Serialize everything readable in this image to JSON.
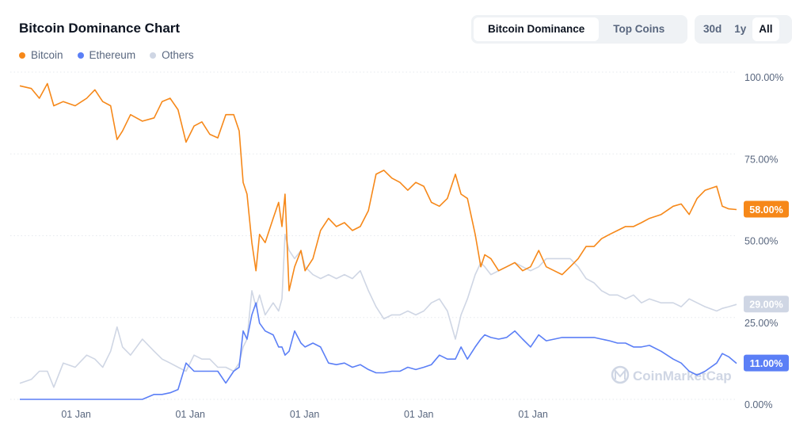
{
  "title": "Bitcoin Dominance Chart",
  "tabs": [
    {
      "label": "Bitcoin Dominance",
      "active": true
    },
    {
      "label": "Top Coins",
      "active": false
    }
  ],
  "ranges": [
    {
      "label": "30d",
      "active": false
    },
    {
      "label": "1y",
      "active": false
    },
    {
      "label": "All",
      "active": true
    }
  ],
  "watermark": "CoinMarketCap",
  "chart_data": {
    "type": "line",
    "title": "",
    "xlabel": "",
    "ylabel": "",
    "ylim": [
      0,
      100
    ],
    "grid": true,
    "legend_placement": "top-left",
    "y_ticks": [
      "0.00%",
      "25.00%",
      "50.00%",
      "75.00%",
      "100.00%"
    ],
    "y_tick_values": [
      0,
      25,
      50,
      75,
      100
    ],
    "x_ticks": [
      {
        "label": "01 Jan",
        "date": "2014-01-01"
      },
      {
        "label": "01 Jan",
        "date": "2016-01-01"
      },
      {
        "label": "01 Jan",
        "date": "2018-01-01"
      },
      {
        "label": "01 Jan",
        "date": "2020-01-01"
      },
      {
        "label": "01 Jan",
        "date": "2022-01-01"
      }
    ],
    "x": [
      "2013-01-06",
      "2013-03-21",
      "2013-05-11",
      "2013-07-01",
      "2013-08-11",
      "2013-10-11",
      "2013-12-26",
      "2014-03-10",
      "2014-05-01",
      "2014-06-20",
      "2014-08-10",
      "2014-09-20",
      "2014-10-25",
      "2014-12-15",
      "2015-03-01",
      "2015-05-15",
      "2015-07-05",
      "2015-08-25",
      "2015-10-15",
      "2015-12-05",
      "2016-01-25",
      "2016-03-15",
      "2016-05-05",
      "2016-06-25",
      "2016-08-15",
      "2016-10-05",
      "2016-11-09",
      "2016-12-04",
      "2016-12-29",
      "2017-01-29",
      "2017-02-24",
      "2017-03-19",
      "2017-04-24",
      "2017-06-14",
      "2017-07-19",
      "2017-08-09",
      "2017-08-29",
      "2017-09-24",
      "2017-10-29",
      "2017-12-09",
      "2018-01-04",
      "2018-02-23",
      "2018-04-13",
      "2018-06-03",
      "2018-07-23",
      "2018-09-13",
      "2018-11-03",
      "2018-12-23",
      "2019-02-13",
      "2019-04-03",
      "2019-05-23",
      "2019-07-13",
      "2019-09-03",
      "2019-10-23",
      "2019-12-13",
      "2020-02-02",
      "2020-03-22",
      "2020-05-12",
      "2020-07-02",
      "2020-08-22",
      "2020-09-27",
      "2020-11-07",
      "2020-12-27",
      "2021-02-01",
      "2021-02-26",
      "2021-04-06",
      "2021-05-26",
      "2021-07-16",
      "2021-09-06",
      "2021-10-26",
      "2021-12-16",
      "2022-02-06",
      "2022-03-26",
      "2022-05-16",
      "2022-07-06",
      "2022-08-26",
      "2022-10-16",
      "2022-12-06",
      "2023-01-26",
      "2023-03-15",
      "2023-05-05",
      "2023-06-25",
      "2023-08-15",
      "2023-10-05",
      "2023-11-25",
      "2024-01-15",
      "2024-03-30",
      "2024-06-15",
      "2024-08-05",
      "2024-09-25",
      "2024-11-15",
      "2025-01-05",
      "2025-03-20",
      "2025-04-25",
      "2025-06-05",
      "2025-07-25"
    ],
    "series": [
      {
        "name": "Bitcoin",
        "color": "#f68819",
        "current_label": "58.00%",
        "values": [
          95.8,
          95,
          92,
          96.5,
          89.7,
          91,
          89.7,
          92,
          94.6,
          91,
          89.7,
          79.4,
          82,
          87,
          85,
          86,
          91,
          92,
          88.5,
          78.6,
          83.5,
          84.8,
          81,
          79.9,
          87,
          87,
          82,
          66.3,
          62.7,
          47.9,
          39.3,
          50.4,
          47.9,
          55.3,
          60.2,
          52.8,
          62.7,
          33.2,
          40.5,
          45.5,
          39.3,
          43,
          51.6,
          55.3,
          52.8,
          54,
          51.6,
          52.8,
          57.7,
          68.8,
          70,
          67.6,
          66.3,
          63.9,
          66.3,
          65.1,
          60.2,
          59,
          61.4,
          68.8,
          62.7,
          61.4,
          50.4,
          40.5,
          44.2,
          43,
          39.3,
          40.5,
          41.8,
          39.3,
          40.5,
          45.5,
          40.5,
          39.3,
          38.1,
          40.5,
          43,
          46.7,
          46.7,
          49.1,
          50.4,
          51.6,
          52.8,
          52.8,
          54,
          55.3,
          56.5,
          59,
          59.7,
          56.5,
          61.4,
          63.9,
          65.1,
          59,
          58.2,
          58.0
        ]
      },
      {
        "name": "Ethereum",
        "color": "#5b7ff6",
        "current_label": "11.00%",
        "values": [
          0,
          0,
          0,
          0,
          0,
          0,
          0,
          0,
          0,
          0,
          0,
          0,
          0,
          0,
          0,
          1.5,
          1.5,
          2.0,
          3.0,
          11.1,
          8.6,
          8.6,
          8.6,
          8.6,
          5.0,
          8.6,
          9.8,
          20.9,
          18.4,
          25.8,
          29.5,
          23.3,
          20.9,
          19.7,
          16.0,
          16.0,
          13.5,
          14.7,
          20.9,
          17.2,
          16.0,
          17.2,
          16.0,
          11.1,
          10.6,
          11.1,
          9.8,
          10.6,
          9.1,
          8.1,
          8.1,
          8.6,
          8.6,
          9.8,
          9.1,
          9.8,
          10.6,
          13.5,
          12.3,
          12.3,
          16.0,
          12.3,
          16.0,
          18.4,
          19.7,
          18.9,
          18.4,
          18.9,
          20.9,
          18.4,
          16.0,
          19.7,
          17.9,
          18.4,
          18.9,
          18.9,
          18.9,
          18.9,
          18.9,
          18.4,
          17.9,
          17.2,
          17.2,
          16.0,
          16.0,
          16.5,
          14.7,
          12.3,
          11.1,
          8.6,
          7.4,
          8.6,
          11.1,
          14.0,
          13.0,
          11.0
        ]
      },
      {
        "name": "Others",
        "color": "#cfd6e4",
        "current_label": "29.00%",
        "values": [
          4.9,
          6.1,
          8.6,
          8.6,
          3.7,
          11.1,
          9.8,
          13.5,
          12.3,
          9.8,
          14.7,
          22.1,
          16.0,
          13.5,
          18.4,
          14.7,
          12.3,
          11.1,
          9.8,
          8.6,
          13.5,
          12.3,
          12.3,
          9.8,
          9.8,
          8.6,
          11.1,
          16.0,
          18.4,
          33.2,
          28.3,
          31.9,
          25.8,
          29.5,
          27.0,
          30.7,
          50.4,
          45.5,
          43.0,
          45.5,
          40.5,
          38.1,
          36.9,
          38.1,
          36.9,
          38.1,
          36.9,
          39.3,
          33.2,
          28.3,
          24.6,
          25.8,
          25.8,
          27.0,
          25.8,
          27.0,
          29.5,
          30.7,
          27.0,
          18.4,
          25.8,
          30.7,
          38.1,
          41.8,
          40.5,
          38.1,
          39.3,
          40.5,
          41.8,
          40.5,
          39.3,
          40.5,
          43.0,
          43.0,
          43.0,
          43.0,
          40.5,
          36.9,
          35.6,
          33.2,
          31.9,
          31.9,
          30.7,
          31.9,
          29.5,
          30.7,
          29.5,
          29.5,
          28.3,
          30.7,
          29.5,
          28.3,
          27.0,
          27.8,
          28.3,
          29.0
        ]
      }
    ]
  }
}
